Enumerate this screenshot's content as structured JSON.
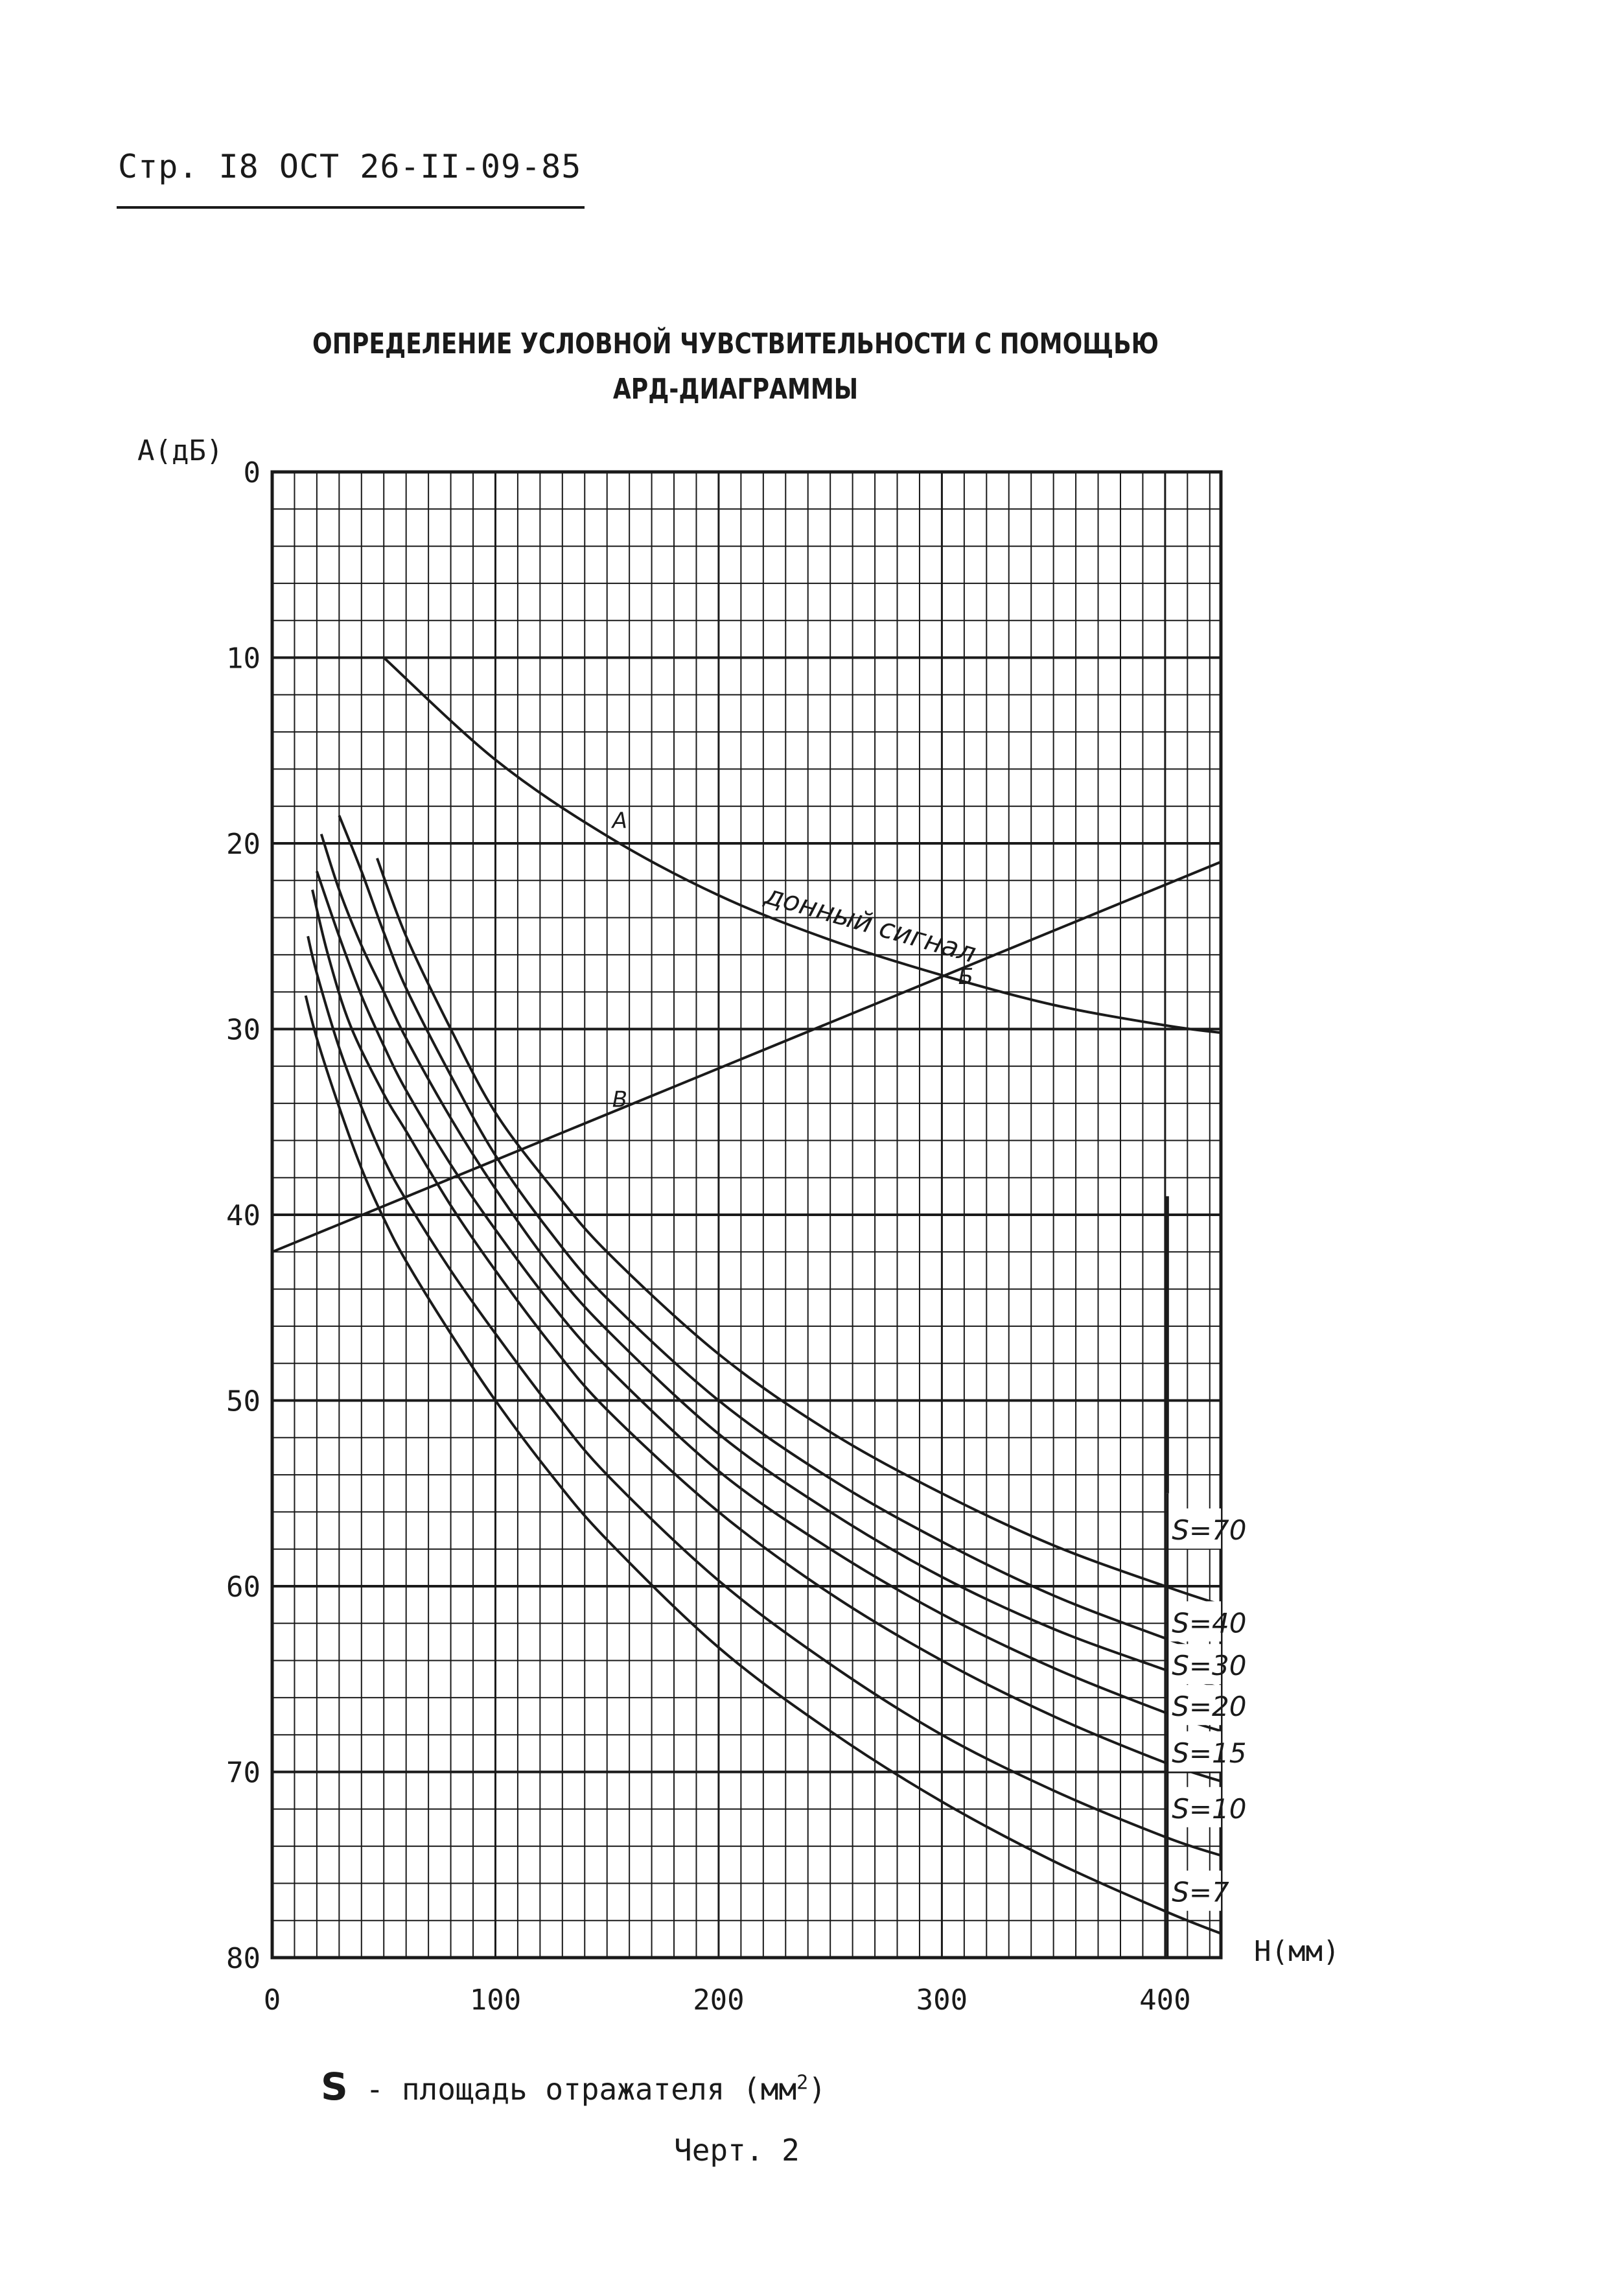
{
  "header": {
    "text": "Стр. I8 ОСТ 26-II-09-85"
  },
  "footer": {
    "legend_symbol": "S",
    "legend_text": " - площадь отражателя (мм",
    "legend_sup": "2",
    "legend_close": ")",
    "chart_number": "Черт. 2"
  },
  "chart_data": {
    "type": "line",
    "title": "ОПРЕДЕЛЕНИЕ УСЛОВНОЙ ЧУВСТВИТЕЛЬНОСТИ С ПОМОЩЬЮ",
    "subtitle": "АРД-ДИАГРАММЫ",
    "xlabel": "Н(мм)",
    "ylabel": "А(дБ)",
    "xlim": [
      0,
      425
    ],
    "ylim": [
      0,
      80
    ],
    "y_inverted": true,
    "grid": true,
    "x_ticks": [
      "0",
      "100",
      "200",
      "300",
      "400"
    ],
    "x_tick_values": [
      0,
      100,
      200,
      300,
      400
    ],
    "y_ticks": [
      "0",
      "10",
      "20",
      "30",
      "40",
      "50",
      "60",
      "70",
      "80"
    ],
    "y_tick_values": [
      0,
      10,
      20,
      30,
      40,
      50,
      60,
      70,
      80
    ],
    "back_wall": {
      "label": "донный сигнал",
      "x": [
        50,
        100,
        150,
        200,
        250,
        300,
        350,
        400,
        425
      ],
      "y": [
        10,
        15.5,
        19.6,
        22.8,
        25.2,
        27.1,
        28.7,
        29.8,
        30.2
      ]
    },
    "sensitivity_line": {
      "x": [
        0,
        425
      ],
      "y": [
        42,
        21
      ]
    },
    "points": [
      {
        "label": "А",
        "x": 150,
        "y": 19.6
      },
      {
        "label": "Б",
        "x": 305,
        "y": 28
      },
      {
        "label": "В",
        "x": 150,
        "y": 34.6
      }
    ],
    "series": [
      {
        "name": "S=70",
        "x": [
          47,
          60,
          80,
          100,
          125,
          150,
          200,
          250,
          300,
          350,
          400,
          425
        ],
        "y": [
          20.8,
          25,
          30,
          34.5,
          38.5,
          42,
          47.5,
          51.7,
          55,
          57.8,
          60,
          61
        ]
      },
      {
        "name": "S=40",
        "x": [
          30,
          40,
          50,
          60,
          80,
          100,
          125,
          150,
          200,
          250,
          300,
          350,
          400,
          425
        ],
        "y": [
          18.5,
          21.5,
          24.8,
          27.8,
          32.5,
          36.8,
          41,
          44.5,
          50,
          54.2,
          57.6,
          60.5,
          62.8,
          63.8
        ]
      },
      {
        "name": "S=30",
        "x": [
          22,
          30,
          40,
          50,
          60,
          80,
          100,
          125,
          150,
          200,
          250,
          300,
          350,
          400,
          425
        ],
        "y": [
          19.5,
          22.5,
          25.5,
          28,
          30.5,
          34.8,
          38.6,
          42.8,
          46.2,
          51.8,
          56,
          59.5,
          62.3,
          64.5,
          65.5
        ]
      },
      {
        "name": "S=20",
        "x": [
          20,
          30,
          40,
          50,
          60,
          80,
          100,
          125,
          150,
          200,
          250,
          300,
          350,
          400,
          425
        ],
        "y": [
          21.5,
          25,
          28.2,
          30.9,
          33.3,
          37.3,
          40.8,
          44.8,
          48.2,
          53.8,
          58,
          61.5,
          64.4,
          66.8,
          67.8
        ]
      },
      {
        "name": "S=15",
        "x": [
          18,
          25,
          35,
          50,
          60,
          80,
          100,
          125,
          150,
          200,
          250,
          300,
          350,
          400,
          425
        ],
        "y": [
          22.5,
          26,
          29.8,
          33.5,
          35.5,
          39.5,
          43,
          47,
          50.5,
          56,
          60.4,
          64,
          67,
          69.5,
          70.5
        ]
      },
      {
        "name": "S=10",
        "x": [
          16,
          20,
          30,
          40,
          50,
          60,
          80,
          100,
          125,
          150,
          200,
          250,
          300,
          350,
          400,
          425
        ],
        "y": [
          25,
          27,
          31,
          34.2,
          37,
          39.2,
          43,
          46.4,
          50.4,
          54,
          59.7,
          64.2,
          68,
          71,
          73.5,
          74.5
        ]
      },
      {
        "name": "S=7",
        "x": [
          15,
          20,
          30,
          40,
          50,
          60,
          80,
          100,
          125,
          150,
          200,
          250,
          300,
          350,
          400,
          425
        ],
        "y": [
          28.2,
          30.5,
          34.2,
          37.5,
          40.2,
          42.5,
          46.4,
          50,
          54,
          57.5,
          63.3,
          67.8,
          71.6,
          74.8,
          77.5,
          78.7
        ]
      }
    ],
    "line_color": "#1a1a1a"
  }
}
